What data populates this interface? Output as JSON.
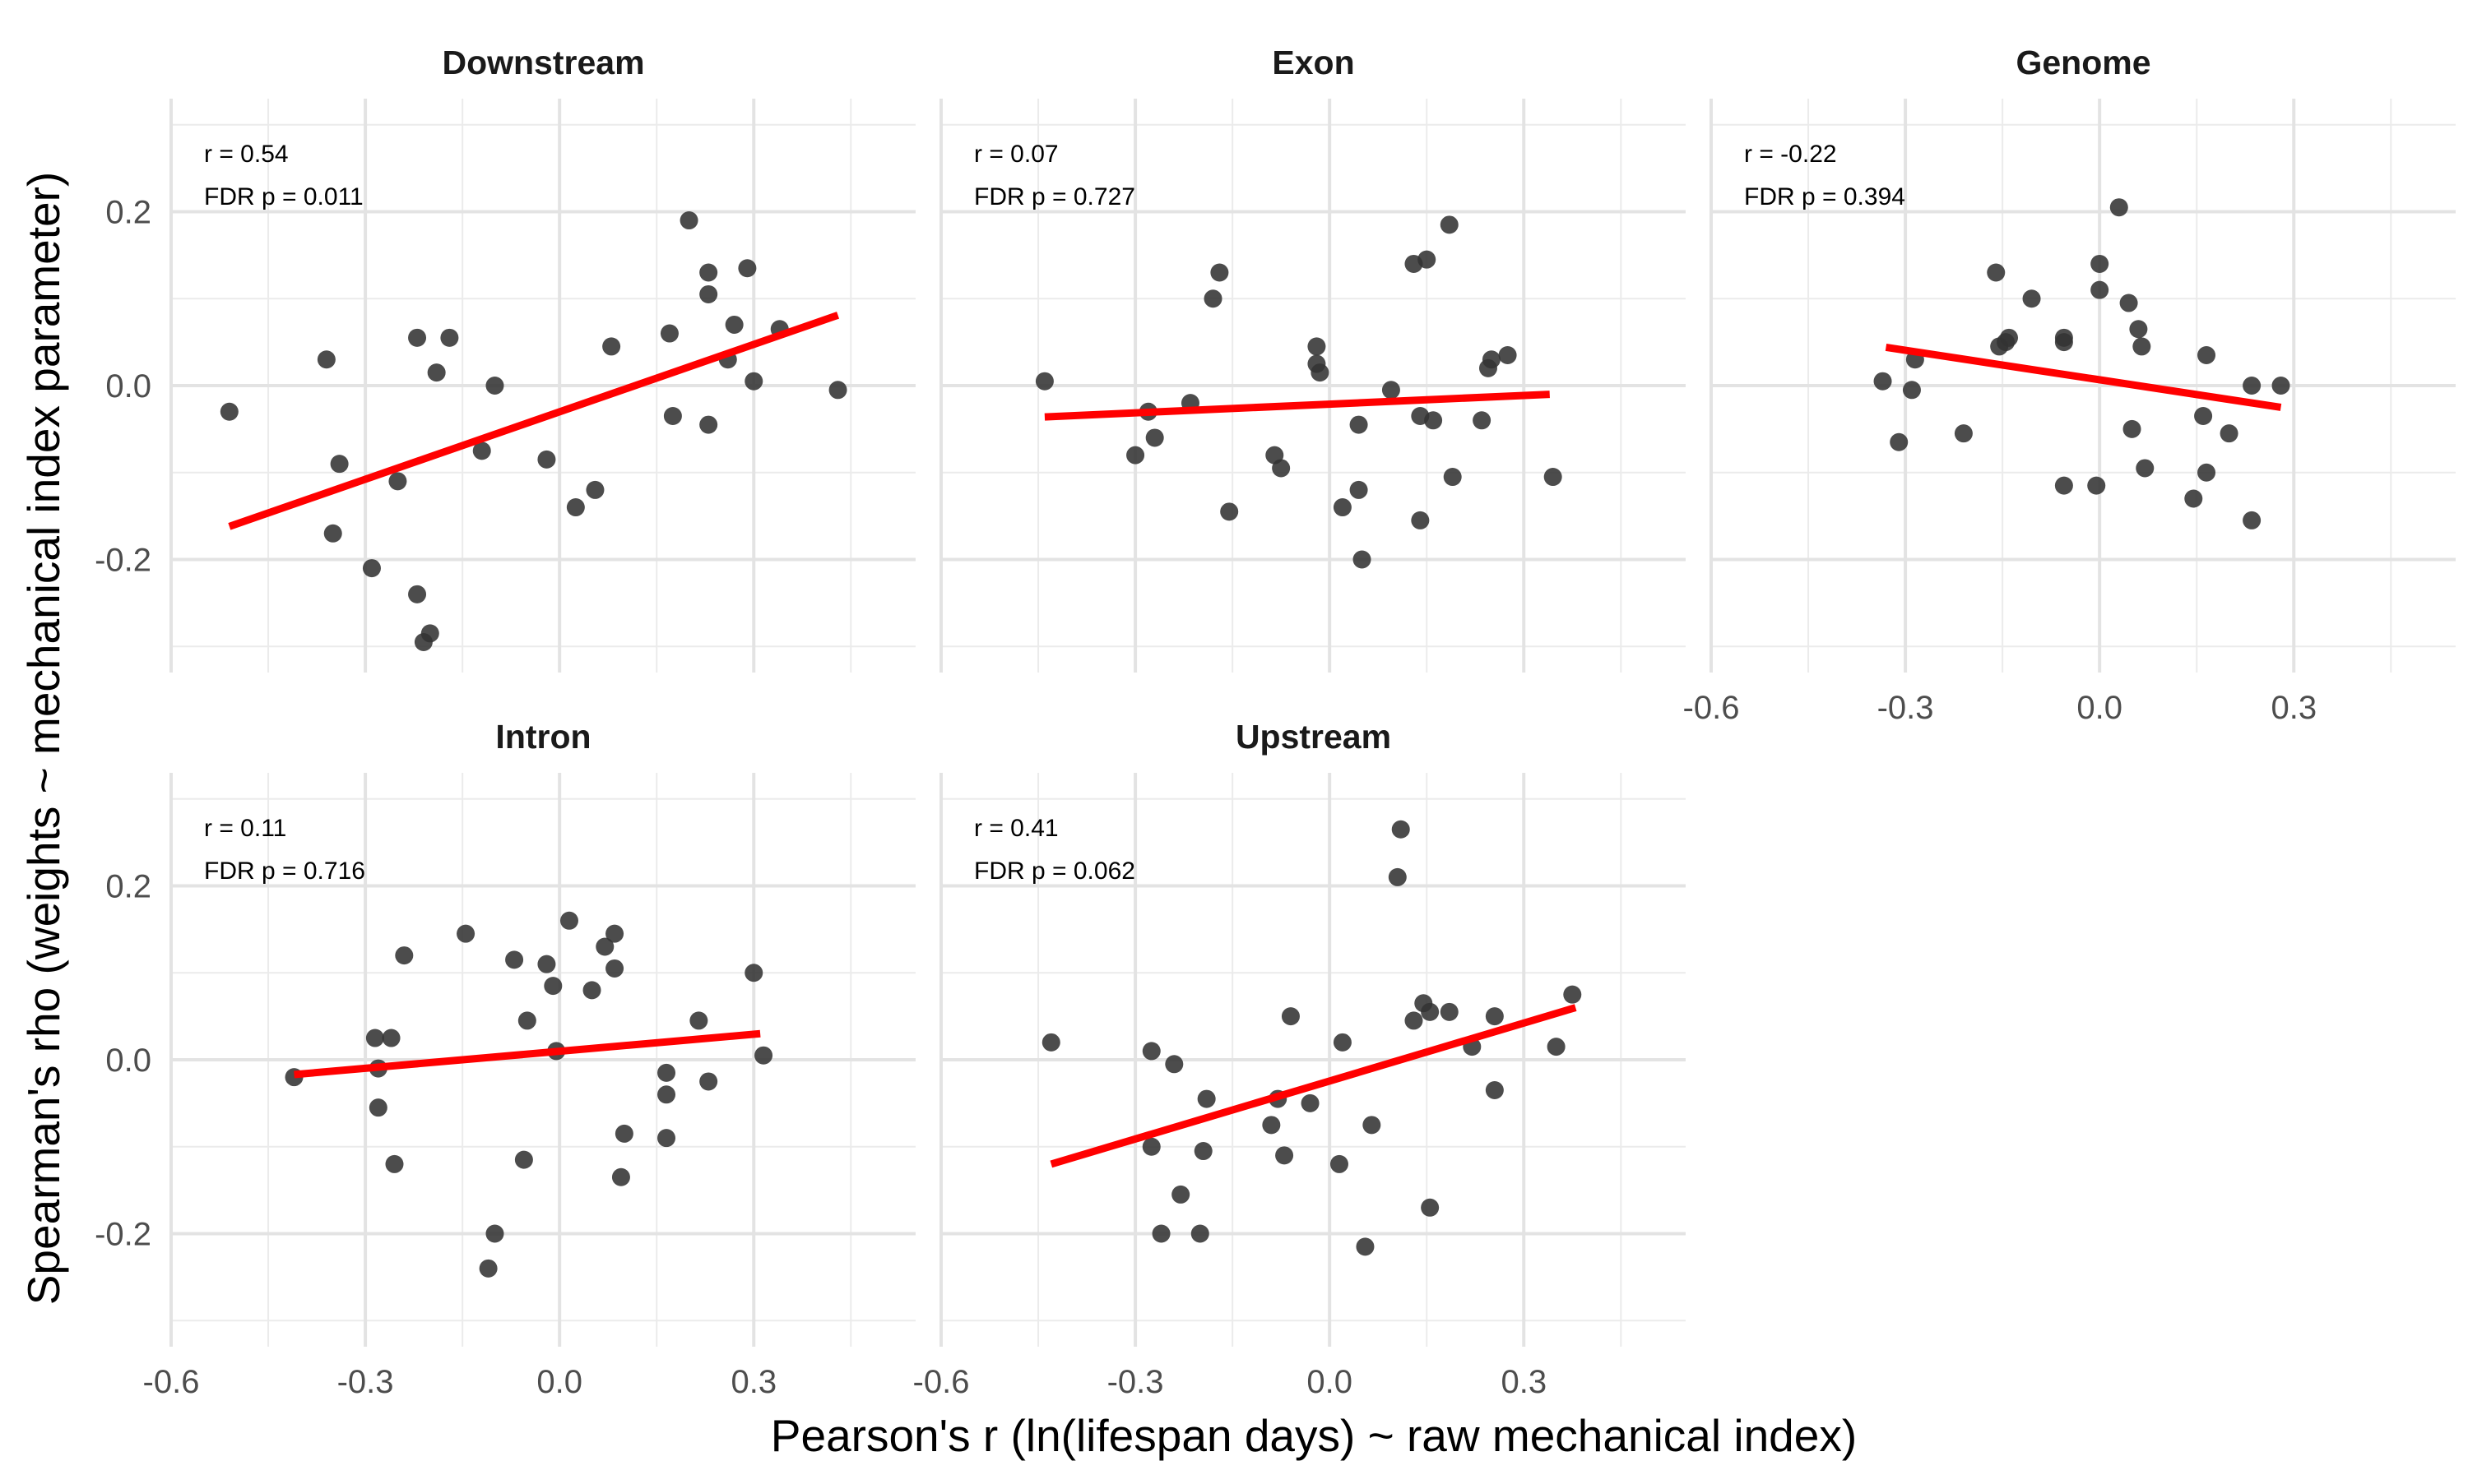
{
  "chart_data": {
    "type": "scatter",
    "xlabel": "Pearson's r (ln(lifespan days) ~ raw mechanical index)",
    "ylabel": "Spearman's rho (weights ~ mechanical index parameter)",
    "xlim": [
      -0.6,
      0.55
    ],
    "ylim": [
      -0.33,
      0.33
    ],
    "x_ticks": [
      -0.6,
      -0.3,
      0.0,
      0.3
    ],
    "x_tick_labels": [
      "-0.6",
      "-0.3",
      "0.0",
      "0.3"
    ],
    "y_ticks": [
      -0.2,
      0.0,
      0.2
    ],
    "y_tick_labels": [
      "-0.2",
      "0.0",
      "0.2"
    ],
    "grid": true,
    "point_color": "#333333",
    "fit_line_color": "#ff0000",
    "panels": [
      {
        "title": "Downstream",
        "annotation": [
          "r = 0.54",
          "FDR p = 0.011"
        ],
        "fit": {
          "x": [
            -0.51,
            0.43
          ],
          "y": [
            -0.162,
            0.081
          ]
        },
        "points": [
          {
            "x": -0.51,
            "y": -0.03
          },
          {
            "x": -0.36,
            "y": 0.03
          },
          {
            "x": -0.34,
            "y": -0.09
          },
          {
            "x": -0.35,
            "y": -0.17
          },
          {
            "x": -0.29,
            "y": -0.21
          },
          {
            "x": -0.25,
            "y": -0.11
          },
          {
            "x": -0.22,
            "y": 0.055
          },
          {
            "x": -0.19,
            "y": 0.015
          },
          {
            "x": -0.17,
            "y": 0.055
          },
          {
            "x": -0.22,
            "y": -0.24
          },
          {
            "x": -0.2,
            "y": -0.285
          },
          {
            "x": -0.21,
            "y": -0.295
          },
          {
            "x": -0.12,
            "y": -0.075
          },
          {
            "x": -0.1,
            "y": 0.0
          },
          {
            "x": -0.02,
            "y": -0.085
          },
          {
            "x": 0.025,
            "y": -0.14
          },
          {
            "x": 0.055,
            "y": -0.12
          },
          {
            "x": 0.08,
            "y": 0.045
          },
          {
            "x": 0.17,
            "y": 0.06
          },
          {
            "x": 0.175,
            "y": -0.035
          },
          {
            "x": 0.2,
            "y": 0.19
          },
          {
            "x": 0.23,
            "y": 0.13
          },
          {
            "x": 0.23,
            "y": 0.105
          },
          {
            "x": 0.23,
            "y": -0.045
          },
          {
            "x": 0.26,
            "y": 0.03
          },
          {
            "x": 0.27,
            "y": 0.07
          },
          {
            "x": 0.29,
            "y": 0.135
          },
          {
            "x": 0.3,
            "y": 0.005
          },
          {
            "x": 0.34,
            "y": 0.065
          },
          {
            "x": 0.43,
            "y": -0.005
          }
        ]
      },
      {
        "title": "Exon",
        "annotation": [
          "r = 0.07",
          "FDR p = 0.727"
        ],
        "fit": {
          "x": [
            -0.44,
            0.34
          ],
          "y": [
            -0.036,
            -0.01
          ]
        },
        "points": [
          {
            "x": -0.44,
            "y": 0.005
          },
          {
            "x": -0.3,
            "y": -0.08
          },
          {
            "x": -0.28,
            "y": -0.03
          },
          {
            "x": -0.27,
            "y": -0.06
          },
          {
            "x": -0.215,
            "y": -0.02
          },
          {
            "x": -0.18,
            "y": 0.1
          },
          {
            "x": -0.17,
            "y": 0.13
          },
          {
            "x": -0.155,
            "y": -0.145
          },
          {
            "x": -0.085,
            "y": -0.08
          },
          {
            "x": -0.075,
            "y": -0.095
          },
          {
            "x": -0.02,
            "y": 0.045
          },
          {
            "x": -0.02,
            "y": 0.025
          },
          {
            "x": -0.015,
            "y": 0.015
          },
          {
            "x": 0.02,
            "y": -0.14
          },
          {
            "x": 0.045,
            "y": -0.12
          },
          {
            "x": 0.045,
            "y": -0.045
          },
          {
            "x": 0.05,
            "y": -0.2
          },
          {
            "x": 0.095,
            "y": -0.005
          },
          {
            "x": 0.13,
            "y": 0.14
          },
          {
            "x": 0.14,
            "y": -0.035
          },
          {
            "x": 0.14,
            "y": -0.155
          },
          {
            "x": 0.15,
            "y": 0.145
          },
          {
            "x": 0.16,
            "y": -0.04
          },
          {
            "x": 0.185,
            "y": 0.185
          },
          {
            "x": 0.19,
            "y": -0.105
          },
          {
            "x": 0.235,
            "y": -0.04
          },
          {
            "x": 0.245,
            "y": 0.02
          },
          {
            "x": 0.25,
            "y": 0.03
          },
          {
            "x": 0.275,
            "y": 0.035
          },
          {
            "x": 0.345,
            "y": -0.105
          }
        ]
      },
      {
        "title": "Genome",
        "annotation": [
          "r = -0.22",
          "FDR p = 0.394"
        ],
        "fit": {
          "x": [
            -0.33,
            0.28
          ],
          "y": [
            0.044,
            -0.025
          ]
        },
        "points": [
          {
            "x": -0.335,
            "y": 0.005
          },
          {
            "x": -0.31,
            "y": -0.065
          },
          {
            "x": -0.29,
            "y": -0.005
          },
          {
            "x": -0.285,
            "y": 0.03
          },
          {
            "x": -0.21,
            "y": -0.055
          },
          {
            "x": -0.16,
            "y": 0.13
          },
          {
            "x": -0.155,
            "y": 0.045
          },
          {
            "x": -0.145,
            "y": 0.05
          },
          {
            "x": -0.14,
            "y": 0.055
          },
          {
            "x": -0.105,
            "y": 0.1
          },
          {
            "x": -0.055,
            "y": 0.055
          },
          {
            "x": -0.055,
            "y": 0.05
          },
          {
            "x": -0.055,
            "y": -0.115
          },
          {
            "x": -0.005,
            "y": -0.115
          },
          {
            "x": 0.0,
            "y": 0.14
          },
          {
            "x": 0.0,
            "y": 0.11
          },
          {
            "x": 0.03,
            "y": 0.205
          },
          {
            "x": 0.045,
            "y": 0.095
          },
          {
            "x": 0.05,
            "y": -0.05
          },
          {
            "x": 0.06,
            "y": 0.065
          },
          {
            "x": 0.065,
            "y": 0.045
          },
          {
            "x": 0.07,
            "y": -0.095
          },
          {
            "x": 0.145,
            "y": -0.13
          },
          {
            "x": 0.16,
            "y": -0.035
          },
          {
            "x": 0.165,
            "y": 0.035
          },
          {
            "x": 0.165,
            "y": -0.1
          },
          {
            "x": 0.2,
            "y": -0.055
          },
          {
            "x": 0.235,
            "y": 0.0
          },
          {
            "x": 0.235,
            "y": -0.155
          },
          {
            "x": 0.28,
            "y": 0.0
          }
        ]
      },
      {
        "title": "Intron",
        "annotation": [
          "r = 0.11",
          "FDR p = 0.716"
        ],
        "fit": {
          "x": [
            -0.41,
            0.31
          ],
          "y": [
            -0.017,
            0.03
          ]
        },
        "points": [
          {
            "x": -0.41,
            "y": -0.02
          },
          {
            "x": -0.285,
            "y": 0.025
          },
          {
            "x": -0.28,
            "y": -0.055
          },
          {
            "x": -0.28,
            "y": -0.01
          },
          {
            "x": -0.26,
            "y": 0.025
          },
          {
            "x": -0.255,
            "y": -0.12
          },
          {
            "x": -0.24,
            "y": 0.12
          },
          {
            "x": -0.145,
            "y": 0.145
          },
          {
            "x": -0.11,
            "y": -0.24
          },
          {
            "x": -0.1,
            "y": -0.2
          },
          {
            "x": -0.07,
            "y": 0.115
          },
          {
            "x": -0.055,
            "y": -0.115
          },
          {
            "x": -0.05,
            "y": 0.045
          },
          {
            "x": -0.02,
            "y": 0.11
          },
          {
            "x": -0.01,
            "y": 0.085
          },
          {
            "x": -0.005,
            "y": 0.01
          },
          {
            "x": 0.015,
            "y": 0.16
          },
          {
            "x": 0.05,
            "y": 0.08
          },
          {
            "x": 0.07,
            "y": 0.13
          },
          {
            "x": 0.085,
            "y": 0.145
          },
          {
            "x": 0.085,
            "y": 0.105
          },
          {
            "x": 0.095,
            "y": -0.135
          },
          {
            "x": 0.1,
            "y": -0.085
          },
          {
            "x": 0.165,
            "y": -0.015
          },
          {
            "x": 0.165,
            "y": -0.04
          },
          {
            "x": 0.165,
            "y": -0.09
          },
          {
            "x": 0.215,
            "y": 0.045
          },
          {
            "x": 0.23,
            "y": -0.025
          },
          {
            "x": 0.3,
            "y": 0.1
          },
          {
            "x": 0.315,
            "y": 0.005
          }
        ]
      },
      {
        "title": "Upstream",
        "annotation": [
          "r = 0.41",
          "FDR p = 0.062"
        ],
        "fit": {
          "x": [
            -0.43,
            0.38
          ],
          "y": [
            -0.12,
            0.06
          ]
        },
        "points": [
          {
            "x": -0.43,
            "y": 0.02
          },
          {
            "x": -0.275,
            "y": 0.01
          },
          {
            "x": -0.275,
            "y": -0.1
          },
          {
            "x": -0.26,
            "y": -0.2
          },
          {
            "x": -0.24,
            "y": -0.005
          },
          {
            "x": -0.23,
            "y": -0.155
          },
          {
            "x": -0.2,
            "y": -0.2
          },
          {
            "x": -0.195,
            "y": -0.105
          },
          {
            "x": -0.19,
            "y": -0.045
          },
          {
            "x": -0.09,
            "y": -0.075
          },
          {
            "x": -0.08,
            "y": -0.045
          },
          {
            "x": -0.07,
            "y": -0.11
          },
          {
            "x": -0.06,
            "y": 0.05
          },
          {
            "x": -0.03,
            "y": -0.05
          },
          {
            "x": 0.015,
            "y": -0.12
          },
          {
            "x": 0.02,
            "y": 0.02
          },
          {
            "x": 0.055,
            "y": -0.215
          },
          {
            "x": 0.065,
            "y": -0.075
          },
          {
            "x": 0.105,
            "y": 0.21
          },
          {
            "x": 0.11,
            "y": 0.265
          },
          {
            "x": 0.13,
            "y": 0.045
          },
          {
            "x": 0.145,
            "y": 0.065
          },
          {
            "x": 0.155,
            "y": 0.055
          },
          {
            "x": 0.155,
            "y": -0.17
          },
          {
            "x": 0.185,
            "y": 0.055
          },
          {
            "x": 0.22,
            "y": 0.015
          },
          {
            "x": 0.255,
            "y": 0.05
          },
          {
            "x": 0.255,
            "y": -0.035
          },
          {
            "x": 0.35,
            "y": 0.015
          },
          {
            "x": 0.375,
            "y": 0.075
          }
        ]
      }
    ]
  }
}
